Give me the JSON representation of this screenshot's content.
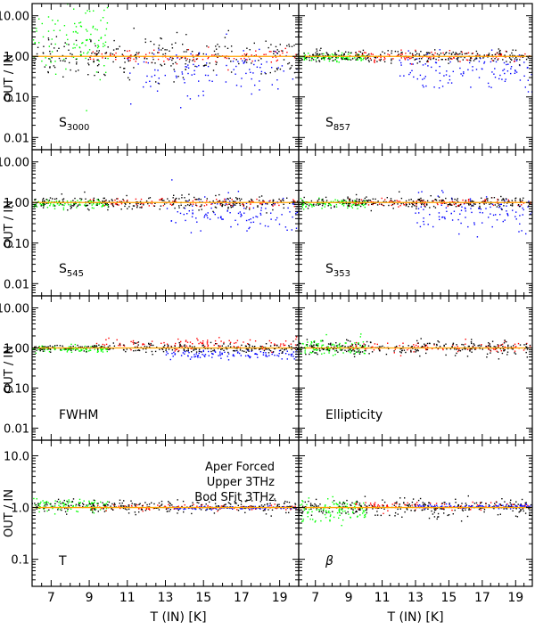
{
  "figure": {
    "ylabel": "OUT / IN",
    "xlabel": "T (IN) [K]",
    "x_ticks": [
      "7",
      "9",
      "11",
      "13",
      "15",
      "17",
      "19"
    ],
    "legend": [
      {
        "label": "Aper Forced",
        "color": "#0000ff"
      },
      {
        "label": "Upper 3THz",
        "color": "#00ff00"
      },
      {
        "label": "Bod SFit 3THz",
        "color": "#ff0000"
      }
    ],
    "colors": {
      "black": "#000000",
      "aper": "#0000ff",
      "upper": "#00ff00",
      "bod": "#ff0000",
      "ref": "#ffa500"
    }
  },
  "chart_data": [
    {
      "type": "scatter",
      "panel": "S3000",
      "label_main": "S",
      "label_sub": "3000",
      "yscale": "log",
      "ylim": [
        0.005,
        20
      ],
      "xlim": [
        6,
        20
      ],
      "yticks": [
        "10.00",
        "1.00",
        "0.10",
        "0.01"
      ],
      "reference_line": 1.0,
      "series": [
        {
          "name": "Aper Forced",
          "center": 0.45,
          "spread": 0.3,
          "x_range": [
            11,
            20
          ]
        },
        {
          "name": "Upper 3THz",
          "center": 3.0,
          "spread": 0.45,
          "x_range": [
            6,
            10
          ]
        },
        {
          "name": "Bod SFit 3THz",
          "center": 1.0,
          "spread": 0.08,
          "x_range": [
            9,
            20
          ]
        },
        {
          "name": "black",
          "center": 1.0,
          "spread": 0.25,
          "x_range": [
            6,
            20
          ]
        }
      ]
    },
    {
      "type": "scatter",
      "panel": "S857",
      "label_main": "S",
      "label_sub": "857",
      "yscale": "log",
      "ylim": [
        0.005,
        20
      ],
      "xlim": [
        6,
        20
      ],
      "yticks": [
        "10.00",
        "1.00",
        "0.10",
        "0.01"
      ],
      "reference_line": 1.0,
      "series": [
        {
          "name": "Aper Forced",
          "center": 0.45,
          "spread": 0.25,
          "x_range": [
            12,
            20
          ]
        },
        {
          "name": "Upper 3THz",
          "center": 0.95,
          "spread": 0.05,
          "x_range": [
            6,
            10
          ]
        },
        {
          "name": "Bod SFit 3THz",
          "center": 1.0,
          "spread": 0.05,
          "x_range": [
            9,
            20
          ]
        },
        {
          "name": "black",
          "center": 1.0,
          "spread": 0.08,
          "x_range": [
            6,
            20
          ]
        }
      ]
    },
    {
      "type": "scatter",
      "panel": "S545",
      "label_main": "S",
      "label_sub": "545",
      "yscale": "log",
      "ylim": [
        0.005,
        20
      ],
      "xlim": [
        6,
        20
      ],
      "yticks": [
        "10.00",
        "1.00",
        "0.10",
        "0.01"
      ],
      "reference_line": 1.0,
      "series": [
        {
          "name": "Aper Forced",
          "center": 0.5,
          "spread": 0.25,
          "x_range": [
            13,
            20
          ]
        },
        {
          "name": "Upper 3THz",
          "center": 0.95,
          "spread": 0.05,
          "x_range": [
            6,
            10
          ]
        },
        {
          "name": "Bod SFit 3THz",
          "center": 1.0,
          "spread": 0.05,
          "x_range": [
            9,
            20
          ]
        },
        {
          "name": "black",
          "center": 1.0,
          "spread": 0.08,
          "x_range": [
            6,
            20
          ]
        }
      ]
    },
    {
      "type": "scatter",
      "panel": "S353",
      "label_main": "S",
      "label_sub": "353",
      "yscale": "log",
      "ylim": [
        0.005,
        20
      ],
      "xlim": [
        6,
        20
      ],
      "yticks": [
        "10.00",
        "1.00",
        "0.10",
        "0.01"
      ],
      "reference_line": 1.0,
      "series": [
        {
          "name": "Aper Forced",
          "center": 0.55,
          "spread": 0.22,
          "x_range": [
            13,
            20
          ]
        },
        {
          "name": "Upper 3THz",
          "center": 0.95,
          "spread": 0.05,
          "x_range": [
            6,
            10
          ]
        },
        {
          "name": "Bod SFit 3THz",
          "center": 1.0,
          "spread": 0.05,
          "x_range": [
            9,
            20
          ]
        },
        {
          "name": "black",
          "center": 1.0,
          "spread": 0.07,
          "x_range": [
            6,
            20
          ]
        }
      ]
    },
    {
      "type": "scatter",
      "panel": "FWHM",
      "label_main": "FWHM",
      "label_sub": "",
      "yscale": "log",
      "ylim": [
        0.005,
        20
      ],
      "xlim": [
        6,
        20
      ],
      "yticks": [
        "10.00",
        "1.00",
        "0.10",
        "0.01"
      ],
      "reference_line": 1.0,
      "series": [
        {
          "name": "Aper Forced",
          "center": 0.68,
          "spread": 0.06,
          "x_range": [
            13,
            20
          ]
        },
        {
          "name": "Upper 3THz",
          "center": 0.95,
          "spread": 0.04,
          "x_range": [
            6,
            10
          ]
        },
        {
          "name": "Bod SFit 3THz",
          "center": 1.25,
          "spread": 0.07,
          "x_range": [
            9,
            20
          ]
        },
        {
          "name": "black",
          "center": 1.0,
          "spread": 0.06,
          "x_range": [
            6,
            20
          ]
        }
      ]
    },
    {
      "type": "scatter",
      "panel": "Ellipticity",
      "label_main": "Ellipticity",
      "label_sub": "",
      "yscale": "log",
      "ylim": [
        0.005,
        20
      ],
      "xlim": [
        6,
        20
      ],
      "yticks": [
        "10.00",
        "1.00",
        "0.10",
        "0.01"
      ],
      "reference_line": 1.0,
      "series": [
        {
          "name": "Upper 3THz",
          "center": 1.05,
          "spread": 0.1,
          "x_range": [
            6,
            10
          ]
        },
        {
          "name": "Bod SFit 3THz",
          "center": 1.0,
          "spread": 0.06,
          "x_range": [
            9,
            20
          ]
        },
        {
          "name": "black",
          "center": 1.0,
          "spread": 0.09,
          "x_range": [
            6,
            20
          ]
        }
      ]
    },
    {
      "type": "scatter",
      "panel": "T",
      "label_main": "T",
      "label_sub": "",
      "yscale": "log",
      "ylim": [
        0.03,
        20
      ],
      "xlim": [
        6,
        20
      ],
      "yticks": [
        "10.0",
        "1.0",
        "0.1"
      ],
      "reference_line": 1.0,
      "series": [
        {
          "name": "Upper 3THz",
          "center": 1.1,
          "spread": 0.06,
          "x_range": [
            6,
            10
          ]
        },
        {
          "name": "Bod SFit 3THz",
          "center": 1.0,
          "spread": 0.03,
          "x_range": [
            9,
            20
          ]
        },
        {
          "name": "black",
          "center": 1.05,
          "spread": 0.06,
          "x_range": [
            6,
            20
          ]
        },
        {
          "name": "Aper Forced",
          "center": 0.98,
          "spread": 0.015,
          "x_range": [
            13,
            20
          ]
        }
      ]
    },
    {
      "type": "scatter",
      "panel": "beta",
      "label_main": "β",
      "label_sub": "",
      "yscale": "log",
      "ylim": [
        0.03,
        20
      ],
      "xlim": [
        6,
        20
      ],
      "yticks": [
        "10.0",
        "1.0",
        "0.1"
      ],
      "reference_line": 1.0,
      "series": [
        {
          "name": "Upper 3THz",
          "center": 0.85,
          "spread": 0.12,
          "x_range": [
            6,
            10
          ]
        },
        {
          "name": "Bod SFit 3THz",
          "center": 1.05,
          "spread": 0.04,
          "x_range": [
            9,
            20
          ]
        },
        {
          "name": "black",
          "center": 1.0,
          "spread": 0.08,
          "x_range": [
            6,
            20
          ]
        },
        {
          "name": "Aper Forced",
          "center": 1.05,
          "spread": 0.02,
          "x_range": [
            13,
            20
          ]
        }
      ]
    }
  ]
}
